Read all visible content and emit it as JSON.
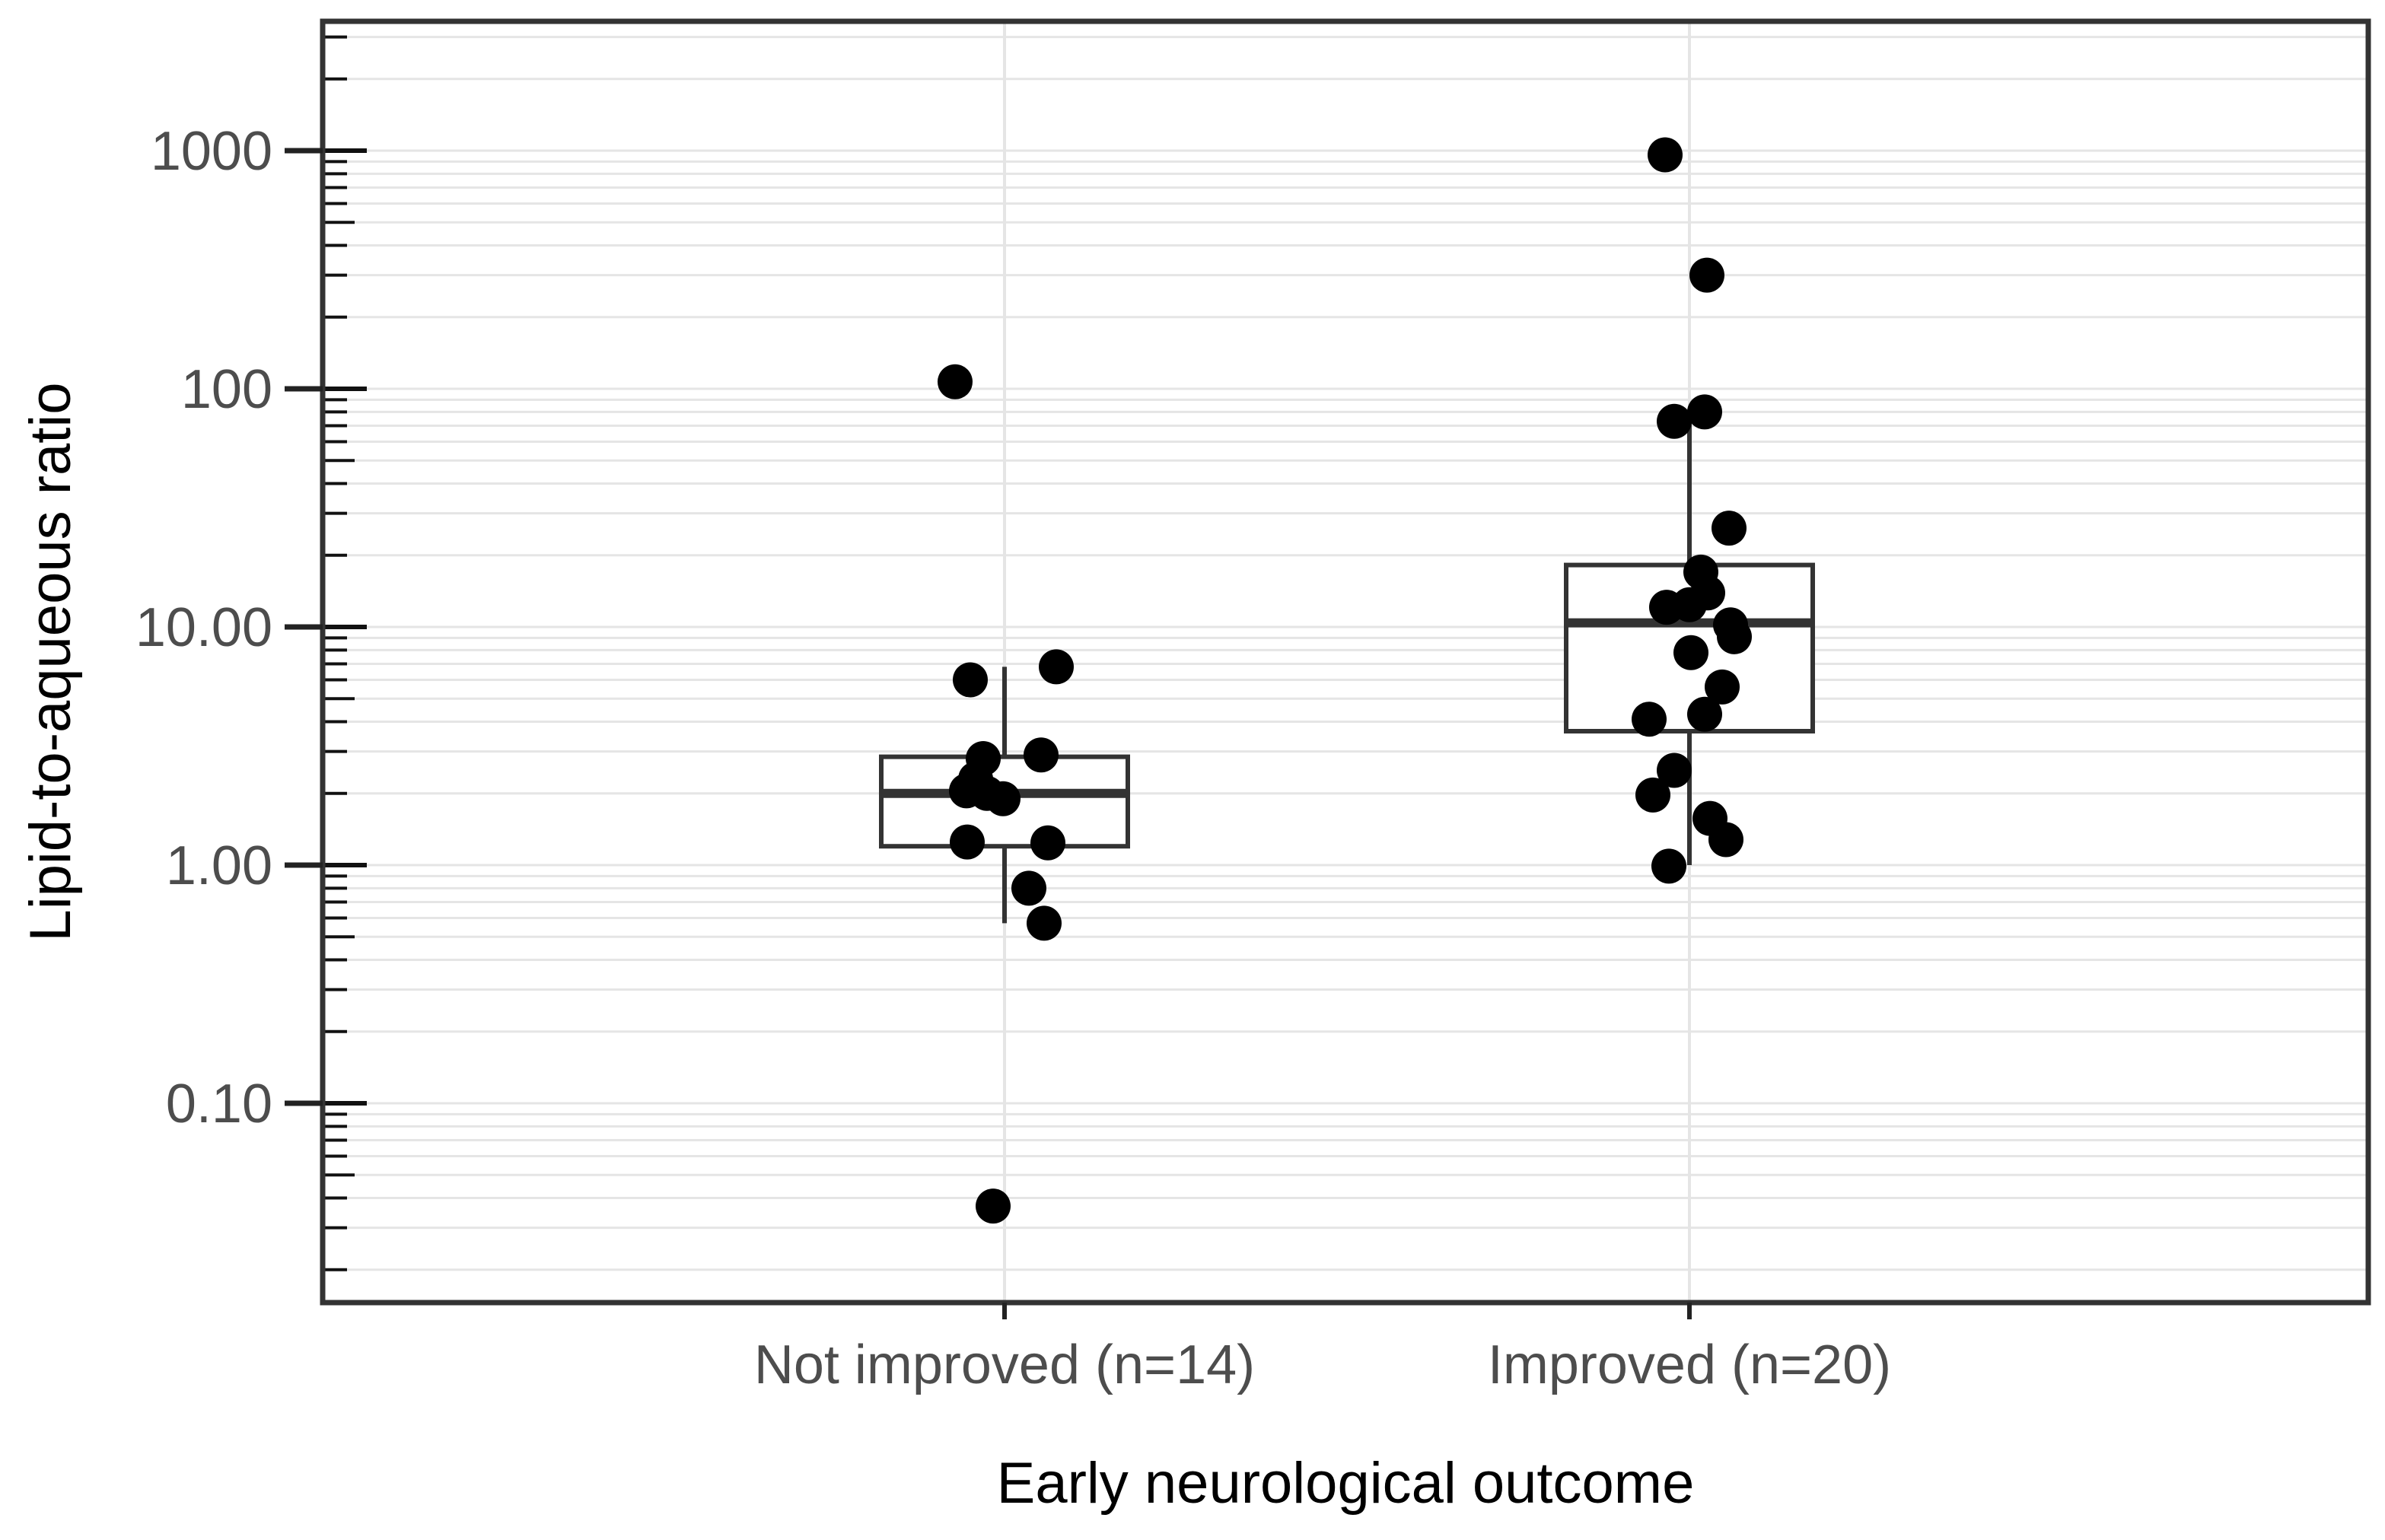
{
  "chart_data": {
    "type": "boxplot",
    "title": "",
    "xlabel": "Early neurological outcome",
    "ylabel": "Lipid-to-aqueous ratio",
    "y_scale": "log10",
    "ylim": [
      0.015,
      3400
    ],
    "grid": "on",
    "legend": "none",
    "y_axis_ticks": [
      {
        "label": "1000",
        "value": 1000
      },
      {
        "label": "100",
        "value": 100
      },
      {
        "label": "10.00",
        "value": 10
      },
      {
        "label": "1.00",
        "value": 1
      },
      {
        "label": "0.10",
        "value": 0.1
      }
    ],
    "groups": [
      {
        "label": "Not improved (n=14)",
        "n": 14,
        "box": {
          "q1": 1.2,
          "median": 2.0,
          "q3": 2.85,
          "whisker_low": 0.57,
          "whisker_high": 6.8
        },
        "points": [
          {
            "value": 107,
            "dx": -65
          },
          {
            "value": 6.8,
            "dx": 68
          },
          {
            "value": 6.0,
            "dx": -45
          },
          {
            "value": 2.9,
            "dx": 48
          },
          {
            "value": 2.8,
            "dx": -28
          },
          {
            "value": 2.3,
            "dx": -38
          },
          {
            "value": 2.05,
            "dx": -50
          },
          {
            "value": 2.0,
            "dx": -23
          },
          {
            "value": 1.9,
            "dx": -2
          },
          {
            "value": 1.25,
            "dx": -49
          },
          {
            "value": 1.24,
            "dx": 57
          },
          {
            "value": 0.8,
            "dx": 32
          },
          {
            "value": 0.57,
            "dx": 52
          },
          {
            "value": 0.037,
            "dx": -15
          }
        ]
      },
      {
        "label": "Improved (n=20)",
        "n": 20,
        "box": {
          "q1": 3.65,
          "median": 10.4,
          "q3": 18.2,
          "whisker_low": 1.0,
          "whisker_high": 73
        },
        "points": [
          {
            "value": 960,
            "dx": -32
          },
          {
            "value": 300,
            "dx": 23
          },
          {
            "value": 80,
            "dx": 20
          },
          {
            "value": 73,
            "dx": -20
          },
          {
            "value": 26,
            "dx": 52
          },
          {
            "value": 17.0,
            "dx": 15
          },
          {
            "value": 13.9,
            "dx": 24
          },
          {
            "value": 12.4,
            "dx": 0
          },
          {
            "value": 12.1,
            "dx": -30
          },
          {
            "value": 10.2,
            "dx": 54
          },
          {
            "value": 9.1,
            "dx": 59
          },
          {
            "value": 7.8,
            "dx": 2
          },
          {
            "value": 5.6,
            "dx": 43
          },
          {
            "value": 4.3,
            "dx": 20
          },
          {
            "value": 4.1,
            "dx": -53
          },
          {
            "value": 2.5,
            "dx": -20
          },
          {
            "value": 1.97,
            "dx": -48
          },
          {
            "value": 1.57,
            "dx": 27
          },
          {
            "value": 1.28,
            "dx": 48
          },
          {
            "value": 0.99,
            "dx": -27
          }
        ]
      }
    ],
    "style": {
      "point_color": "#000000",
      "box_color": "#333333",
      "grid_color": "#e5e5e5",
      "tick_label_color": "#4d4d4d",
      "title_color": "#000000",
      "background": "#ffffff"
    }
  }
}
